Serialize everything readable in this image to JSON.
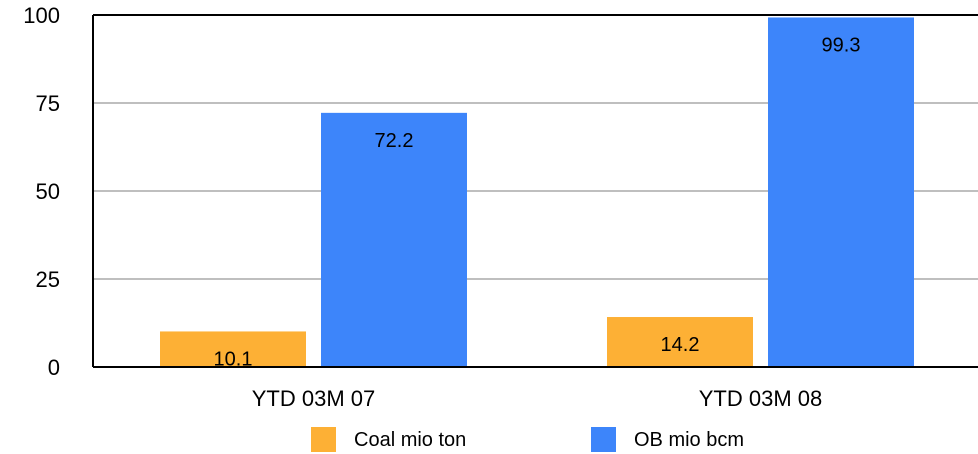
{
  "chart_data": {
    "type": "bar",
    "categories": [
      "YTD 03M 07",
      "YTD 03M 08"
    ],
    "series": [
      {
        "name": "Coal mio ton",
        "values": [
          10.1,
          14.2
        ],
        "color": "#FDB035"
      },
      {
        "name": "OB mio bcm",
        "values": [
          72.2,
          99.3
        ],
        "color": "#3D85FA"
      }
    ],
    "ylim": [
      0,
      100
    ],
    "yticks": [
      0,
      25,
      50,
      75,
      100
    ],
    "grid": true,
    "legend_position": "bottom"
  },
  "colors": {
    "gridline": "#AAAAAA",
    "axis": "#000000"
  }
}
